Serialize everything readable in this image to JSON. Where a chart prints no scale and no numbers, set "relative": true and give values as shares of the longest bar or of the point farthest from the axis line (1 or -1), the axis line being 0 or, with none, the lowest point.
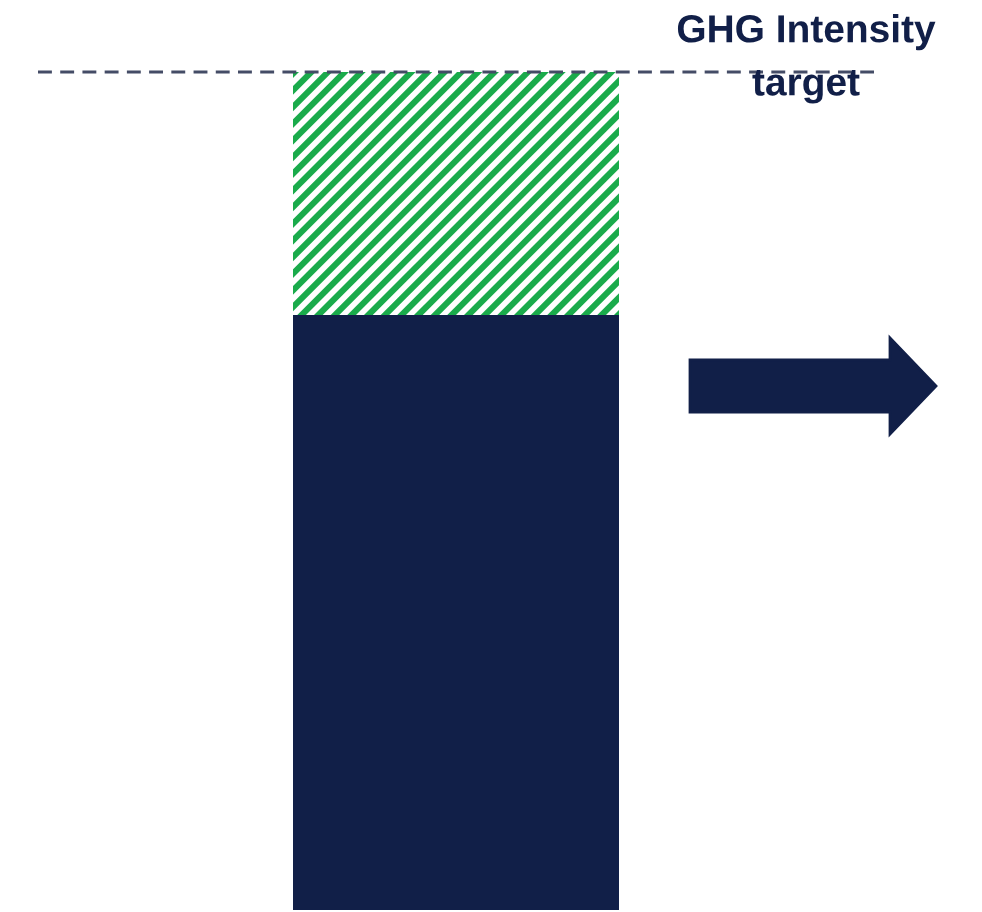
{
  "chart_data": {
    "type": "bar",
    "relative": true,
    "stacked": true,
    "categories": [
      null
    ],
    "series": [
      {
        "color": "#111f48",
        "values": [
          0.71
        ]
      },
      {
        "color": "#1aab4b",
        "values": [
          0.29
        ]
      }
    ],
    "ref_lines": [
      {
        "axis": "y",
        "value": 1.0,
        "label": "GHG Intensity target",
        "color": "#444c66",
        "line_style": "dashed"
      }
    ],
    "grid": false,
    "legend": false
  }
}
